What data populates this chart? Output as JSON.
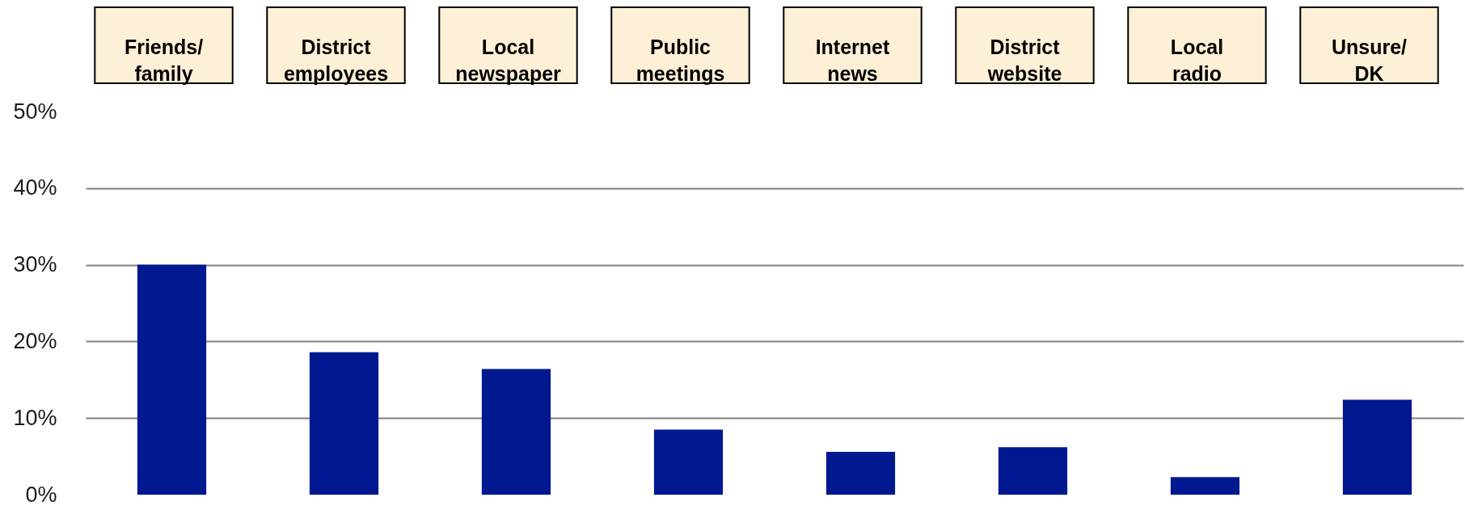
{
  "chart_data": {
    "type": "bar",
    "categories": [
      "Friends/\nfamily",
      "District\nemployees",
      "Local\nnewspaper",
      "Public\nmeetings",
      "Internet\nnews",
      "District\nwebsite",
      "Local\nradio",
      "Unsure/\nDK"
    ],
    "values": [
      30,
      18.6,
      16.4,
      8.5,
      5.6,
      6.2,
      2.3,
      12.4
    ],
    "color": "#001890",
    "ylim": [
      0,
      50
    ],
    "yticks": [
      {
        "value": 0,
        "label": "0%"
      },
      {
        "value": 10,
        "label": "10%"
      },
      {
        "value": 20,
        "label": "20%"
      },
      {
        "value": 30,
        "label": "30%"
      },
      {
        "value": 40,
        "label": "40%"
      },
      {
        "value": 50,
        "label": "50%"
      }
    ],
    "grid": "y"
  }
}
